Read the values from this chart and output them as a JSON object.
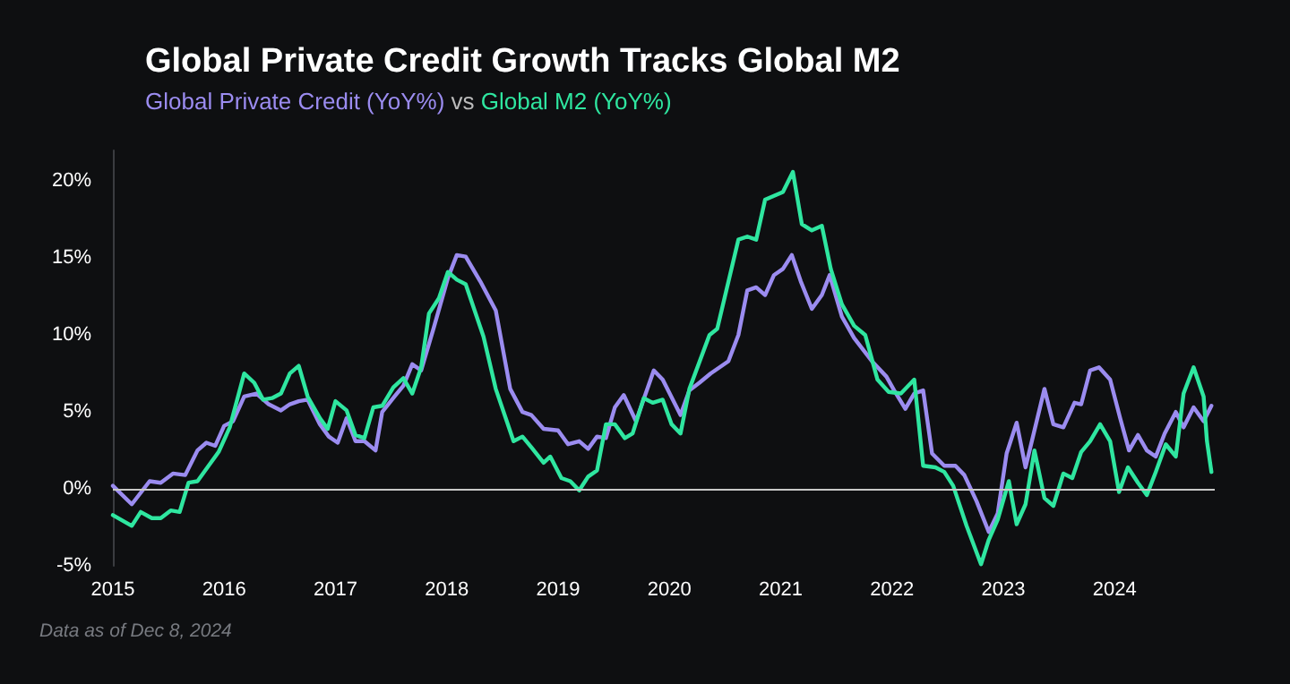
{
  "chart_data": {
    "type": "line",
    "title": "Global Private Credit Growth Tracks Global M2",
    "subtitle": "vs",
    "legend": "top left",
    "marker": "none",
    "line_style": "solid",
    "grid": false,
    "xlim": [
      2015,
      2024.9
    ],
    "xticks": [
      2015,
      2016,
      2017,
      2018,
      2019,
      2020,
      2021,
      2022,
      2023,
      2024
    ],
    "ylim": [
      -5,
      22
    ],
    "yticks": [
      {
        "value": -5,
        "label": "-5%"
      },
      {
        "value": 0,
        "label": "0%"
      },
      {
        "value": 5,
        "label": "5%"
      },
      {
        "value": 10,
        "label": "10%"
      },
      {
        "value": 15,
        "label": "15%"
      },
      {
        "value": 20,
        "label": "20%"
      }
    ],
    "ref_lines": [
      {
        "axis": "y",
        "value": 0,
        "color": "#c8c8c8"
      }
    ],
    "annotations": [
      "Data as of Dec 8, 2024"
    ],
    "series": [
      {
        "name": "Global Private Credit (YoY%)",
        "color": "#9b8cf0",
        "x": [
          2015.0,
          2015.17,
          2015.33,
          2015.43,
          2015.54,
          2015.65,
          2015.76,
          2015.84,
          2015.92,
          2016.0,
          2016.08,
          2016.18,
          2016.29,
          2016.4,
          2016.51,
          2016.59,
          2016.67,
          2016.75,
          2016.86,
          2016.94,
          2017.02,
          2017.1,
          2017.18,
          2017.26,
          2017.36,
          2017.42,
          2017.53,
          2017.61,
          2017.69,
          2017.77,
          2017.88,
          2018.01,
          2018.09,
          2018.17,
          2018.3,
          2018.44,
          2018.57,
          2018.68,
          2018.76,
          2018.87,
          2019.0,
          2019.09,
          2019.19,
          2019.27,
          2019.35,
          2019.43,
          2019.51,
          2019.59,
          2019.7,
          2019.86,
          2019.94,
          2020.1,
          2020.18,
          2020.27,
          2020.37,
          2020.53,
          2020.62,
          2020.7,
          2020.78,
          2020.86,
          2020.94,
          2021.02,
          2021.1,
          2021.18,
          2021.28,
          2021.37,
          2021.44,
          2021.55,
          2021.66,
          2021.82,
          2021.95,
          2022.02,
          2022.12,
          2022.2,
          2022.28,
          2022.36,
          2022.47,
          2022.57,
          2022.65,
          2022.76,
          2022.87,
          2022.95,
          2023.03,
          2023.12,
          2023.2,
          2023.37,
          2023.45,
          2023.54,
          2023.64,
          2023.7,
          2023.78,
          2023.86,
          2023.96,
          2024.05,
          2024.13,
          2024.21,
          2024.29,
          2024.37,
          2024.45,
          2024.55,
          2024.62,
          2024.71,
          2024.8,
          2024.87
        ],
        "values": [
          0.2,
          -1.0,
          0.5,
          0.4,
          1.0,
          0.9,
          2.5,
          3.0,
          2.8,
          4.1,
          4.4,
          6.0,
          6.2,
          5.5,
          5.1,
          5.5,
          5.7,
          5.8,
          4.2,
          3.4,
          3.0,
          4.6,
          3.1,
          3.1,
          2.5,
          5.0,
          6.0,
          6.7,
          8.1,
          7.7,
          10.4,
          13.7,
          15.2,
          15.1,
          13.5,
          11.6,
          6.5,
          5.0,
          4.8,
          3.9,
          3.8,
          2.9,
          3.1,
          2.6,
          3.4,
          3.3,
          5.3,
          6.1,
          4.4,
          7.7,
          7.1,
          4.8,
          6.4,
          6.9,
          7.5,
          8.3,
          10.0,
          12.9,
          13.1,
          12.6,
          13.9,
          14.3,
          15.2,
          13.5,
          11.7,
          12.6,
          13.9,
          11.2,
          9.8,
          8.3,
          7.3,
          6.4,
          5.2,
          6.2,
          6.4,
          2.3,
          1.5,
          1.5,
          0.9,
          -0.8,
          -2.8,
          -1.6,
          2.3,
          4.3,
          1.4,
          6.5,
          4.2,
          4.0,
          5.6,
          5.5,
          7.7,
          7.9,
          7.1,
          4.6,
          2.5,
          3.5,
          2.5,
          2.1,
          3.6,
          5.0,
          4.0,
          5.3,
          4.4,
          5.4
        ]
      },
      {
        "name": "Global M2 (YoY%)",
        "color": "#2fe6a0",
        "x": [
          2015.0,
          2015.17,
          2015.25,
          2015.35,
          2015.43,
          2015.52,
          2015.6,
          2015.68,
          2015.76,
          2015.86,
          2015.95,
          2016.05,
          2016.18,
          2016.27,
          2016.35,
          2016.43,
          2016.51,
          2016.59,
          2016.67,
          2016.75,
          2016.86,
          2016.93,
          2017.0,
          2017.1,
          2017.18,
          2017.26,
          2017.34,
          2017.42,
          2017.52,
          2017.61,
          2017.69,
          2017.77,
          2017.84,
          2017.93,
          2018.01,
          2018.09,
          2018.17,
          2018.33,
          2018.44,
          2018.6,
          2018.68,
          2018.76,
          2018.87,
          2018.93,
          2019.03,
          2019.11,
          2019.19,
          2019.27,
          2019.35,
          2019.43,
          2019.51,
          2019.6,
          2019.67,
          2019.77,
          2019.85,
          2019.94,
          2020.02,
          2020.1,
          2020.18,
          2020.36,
          2020.43,
          2020.62,
          2020.7,
          2020.78,
          2020.86,
          2021.02,
          2021.11,
          2021.19,
          2021.28,
          2021.37,
          2021.45,
          2021.55,
          2021.66,
          2021.76,
          2021.87,
          2021.97,
          2022.08,
          2022.2,
          2022.28,
          2022.39,
          2022.47,
          2022.55,
          2022.67,
          2022.8,
          2022.87,
          2022.95,
          2023.05,
          2023.12,
          2023.2,
          2023.28,
          2023.37,
          2023.45,
          2023.54,
          2023.62,
          2023.7,
          2023.78,
          2023.87,
          2023.96,
          2024.04,
          2024.12,
          2024.21,
          2024.29,
          2024.37,
          2024.46,
          2024.55,
          2024.62,
          2024.71,
          2024.8,
          2024.83,
          2024.87
        ],
        "values": [
          -1.7,
          -2.4,
          -1.5,
          -1.9,
          -1.9,
          -1.4,
          -1.5,
          0.4,
          0.5,
          1.5,
          2.4,
          4.0,
          7.5,
          6.9,
          5.8,
          5.9,
          6.2,
          7.5,
          8.0,
          6.0,
          4.6,
          3.9,
          5.7,
          5.1,
          3.5,
          3.3,
          5.3,
          5.4,
          6.6,
          7.2,
          6.2,
          7.9,
          11.4,
          12.4,
          14.1,
          13.6,
          13.3,
          9.9,
          6.5,
          3.1,
          3.4,
          2.7,
          1.7,
          2.1,
          0.7,
          0.5,
          -0.1,
          0.8,
          1.2,
          4.2,
          4.2,
          3.3,
          3.6,
          5.9,
          5.6,
          5.8,
          4.2,
          3.6,
          6.5,
          10.0,
          10.4,
          16.2,
          16.4,
          16.2,
          18.8,
          19.3,
          20.6,
          17.2,
          16.8,
          17.1,
          14.3,
          12.0,
          10.6,
          10.0,
          7.1,
          6.3,
          6.2,
          7.1,
          1.5,
          1.4,
          1.1,
          0.2,
          -2.4,
          -4.9,
          -3.3,
          -2.0,
          0.5,
          -2.3,
          -1.0,
          2.5,
          -0.6,
          -1.1,
          1.0,
          0.7,
          2.4,
          3.1,
          4.2,
          3.1,
          -0.2,
          1.4,
          0.4,
          -0.4,
          1.1,
          2.9,
          2.1,
          6.2,
          7.9,
          6.0,
          3.1,
          1.1
        ]
      }
    ]
  }
}
